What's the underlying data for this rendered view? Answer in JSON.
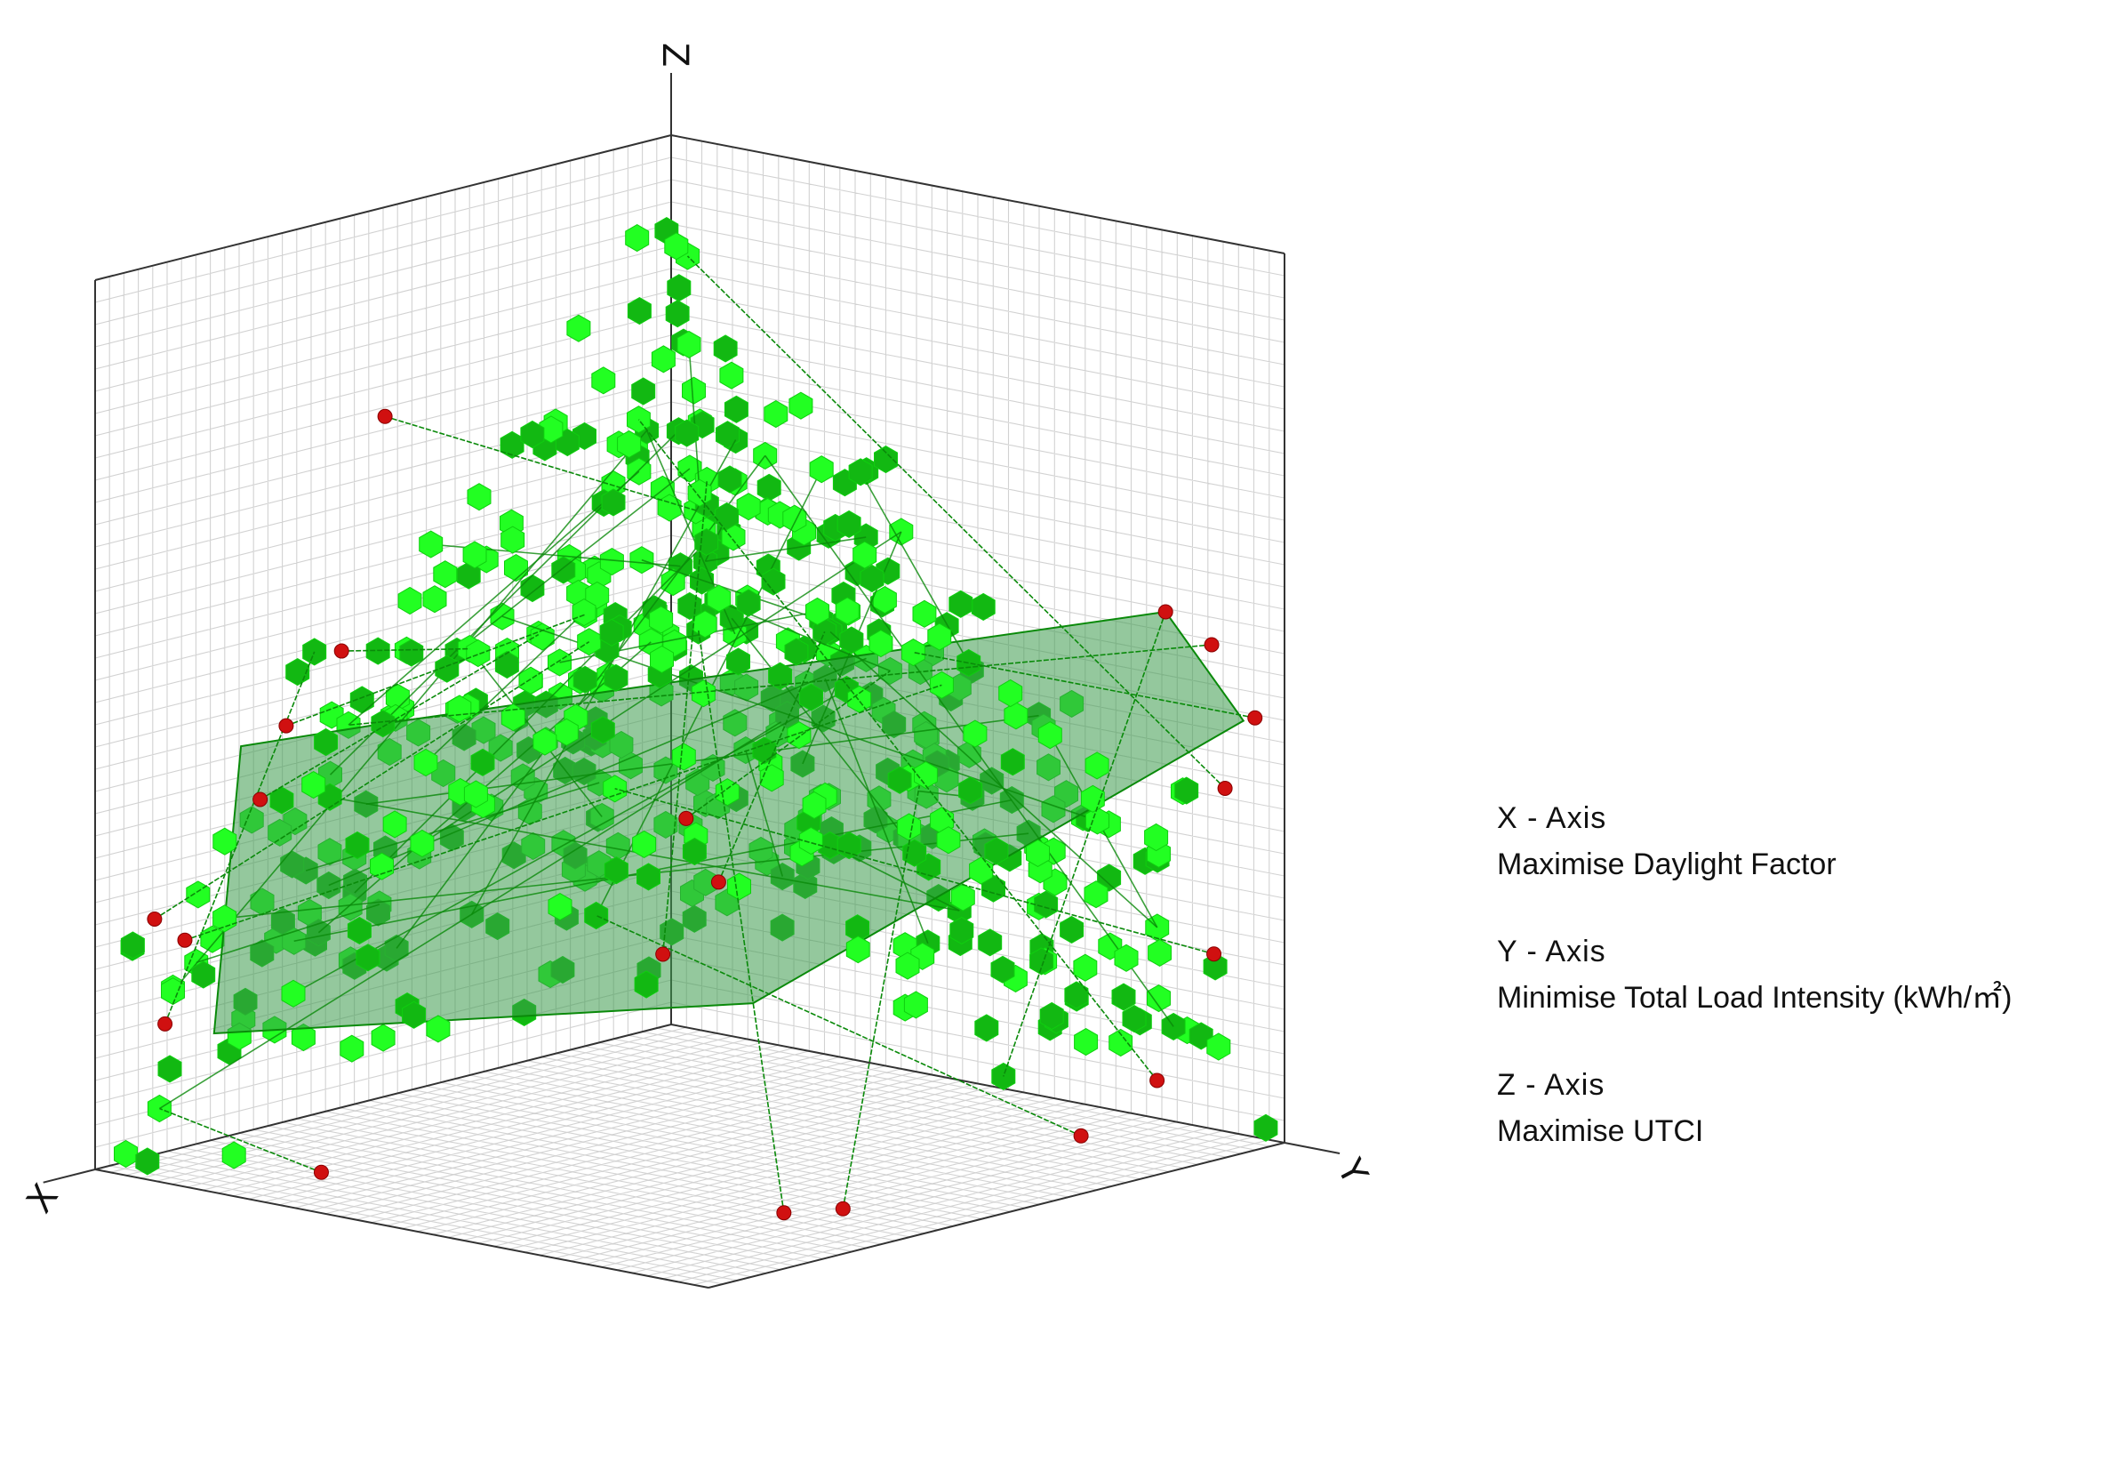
{
  "chart_data": {
    "type": "scatter",
    "projection": "isometric-3d",
    "grid": true,
    "axis_letters": {
      "x": "X",
      "y": "Y",
      "z": "Z"
    },
    "legend": [
      {
        "axis": "X - Axis",
        "label": "Maximise Daylight Factor"
      },
      {
        "axis": "Y - Axis",
        "label": "Minimise Total Load Intensity (kWh/㎡)"
      },
      {
        "axis": "Z - Axis",
        "label": "Maximise UTCI"
      }
    ],
    "legend_placement": "right",
    "colors": {
      "solutions": "#22ff22",
      "solutions_dark": "#12b812",
      "pareto_points": "#d01010",
      "pareto_surface": "#3c9a4c",
      "grid": "#d2d2d2",
      "frame": "#333333",
      "connector": "#0a8a0a"
    },
    "pareto_points": [
      {
        "x": 0.55,
        "y": 0.05,
        "z": 0.78
      },
      {
        "x": 0.7,
        "y": 0.12,
        "z": 0.55
      },
      {
        "x": 0.9,
        "y": 0.02,
        "z": 0.15
      },
      {
        "x": 0.86,
        "y": 0.18,
        "z": 0.5
      },
      {
        "x": 0.82,
        "y": 0.1,
        "z": 0.4
      },
      {
        "x": 0.95,
        "y": 0.05,
        "z": 0.28
      },
      {
        "x": 0.94,
        "y": 0.09,
        "z": 0.26
      },
      {
        "x": 0.98,
        "y": 0.35,
        "z": 0.04
      },
      {
        "x": 0.72,
        "y": 0.86,
        "z": 0.02
      },
      {
        "x": 0.66,
        "y": 0.9,
        "z": 0.02
      },
      {
        "x": 0.3,
        "y": 0.95,
        "z": 0.05
      },
      {
        "x": 0.2,
        "y": 0.98,
        "z": 0.1
      },
      {
        "x": 0.08,
        "y": 0.96,
        "z": 0.22
      },
      {
        "x": 0.02,
        "y": 0.9,
        "z": 0.55
      },
      {
        "x": 0.05,
        "y": 0.95,
        "z": 0.4
      },
      {
        "x": 0.03,
        "y": 0.98,
        "z": 0.48
      },
      {
        "x": 0.1,
        "y": 0.9,
        "z": 0.6
      },
      {
        "x": 0.4,
        "y": 0.4,
        "z": 0.35
      },
      {
        "x": 0.45,
        "y": 0.5,
        "z": 0.3
      },
      {
        "x": 0.6,
        "y": 0.55,
        "z": 0.25
      }
    ],
    "pareto_surface": [
      {
        "x": 0.9,
        "y": 0.1,
        "z": 0.15
      },
      {
        "x": 0.55,
        "y": 0.65,
        "z": 0.2
      },
      {
        "x": 0.05,
        "y": 0.98,
        "z": 0.48
      },
      {
        "x": 0.1,
        "y": 0.9,
        "z": 0.6
      },
      {
        "x": 0.6,
        "y": 0.1,
        "z": 0.45
      },
      {
        "x": 0.8,
        "y": 0.05,
        "z": 0.45
      }
    ],
    "solution_count": 520,
    "random_seed": 73
  }
}
